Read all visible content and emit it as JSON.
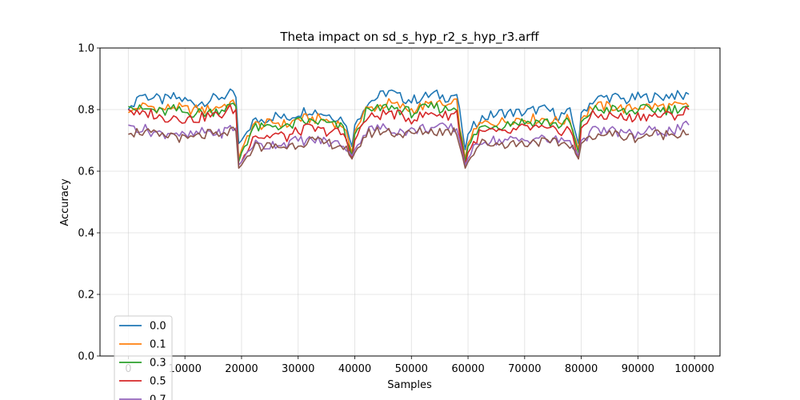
{
  "chart_data": {
    "type": "line",
    "title": "Theta impact on sd_s_hyp_r2_s_hyp_r3.arff",
    "xlabel": "Samples",
    "ylabel": "Accuracy",
    "xlim": [
      -5000,
      104500
    ],
    "ylim": [
      0.0,
      1.0
    ],
    "xticks": [
      0,
      10000,
      20000,
      30000,
      40000,
      50000,
      60000,
      70000,
      80000,
      90000,
      100000
    ],
    "xtick_labels": [
      "0",
      "10000",
      "20000",
      "30000",
      "40000",
      "50000",
      "60000",
      "70000",
      "80000",
      "90000",
      "100000"
    ],
    "yticks": [
      0.0,
      0.2,
      0.4,
      0.6,
      0.8,
      1.0
    ],
    "ytick_labels": [
      "0.0",
      "0.2",
      "0.4",
      "0.6",
      "0.8",
      "1.0"
    ],
    "grid": true,
    "legend_position": "lower-left",
    "x": {
      "start": 0,
      "step": 500,
      "count": 199
    },
    "series": [
      {
        "name": "0.0",
        "color": "#1f77b4",
        "segments": [
          {
            "x": [
              0,
              2000,
              4000,
              6000,
              8000,
              10000,
              12000,
              14000,
              16000,
              18000,
              19000,
              19500
            ],
            "y": [
              0.8,
              0.85,
              0.84,
              0.83,
              0.84,
              0.83,
              0.82,
              0.83,
              0.84,
              0.85,
              0.84,
              0.69
            ]
          },
          {
            "x": [
              20000,
              22000,
              24000,
              26000,
              28000,
              30000,
              32000,
              34000,
              36000,
              38000,
              39500
            ],
            "y": [
              0.7,
              0.76,
              0.77,
              0.78,
              0.77,
              0.79,
              0.8,
              0.79,
              0.78,
              0.77,
              0.68
            ]
          },
          {
            "x": [
              40000,
              42000,
              44000,
              46000,
              48000,
              50000,
              52000,
              54000,
              56000,
              58000,
              59500
            ],
            "y": [
              0.75,
              0.82,
              0.84,
              0.86,
              0.84,
              0.83,
              0.84,
              0.85,
              0.84,
              0.85,
              0.67
            ]
          },
          {
            "x": [
              60000,
              62000,
              64000,
              66000,
              68000,
              70000,
              72000,
              74000,
              76000,
              78000,
              79500
            ],
            "y": [
              0.72,
              0.77,
              0.78,
              0.79,
              0.79,
              0.79,
              0.8,
              0.8,
              0.78,
              0.79,
              0.69
            ]
          },
          {
            "x": [
              80000,
              82000,
              84000,
              86000,
              88000,
              90000,
              92000,
              94000,
              96000,
              98000,
              99000
            ],
            "y": [
              0.79,
              0.83,
              0.84,
              0.84,
              0.83,
              0.84,
              0.84,
              0.84,
              0.85,
              0.84,
              0.85
            ]
          }
        ]
      },
      {
        "name": "0.1",
        "color": "#ff7f0e",
        "segments": [
          {
            "x": [
              0,
              2000,
              4000,
              6000,
              8000,
              10000,
              12000,
              14000,
              16000,
              18000,
              19000,
              19500
            ],
            "y": [
              0.79,
              0.81,
              0.81,
              0.8,
              0.81,
              0.8,
              0.8,
              0.8,
              0.81,
              0.82,
              0.81,
              0.64
            ]
          },
          {
            "x": [
              20000,
              22000,
              24000,
              26000,
              28000,
              30000,
              32000,
              34000,
              36000,
              38000,
              39500
            ],
            "y": [
              0.67,
              0.75,
              0.75,
              0.76,
              0.75,
              0.77,
              0.77,
              0.77,
              0.76,
              0.75,
              0.66
            ]
          },
          {
            "x": [
              40000,
              42000,
              44000,
              46000,
              48000,
              50000,
              52000,
              54000,
              56000,
              58000,
              59500
            ],
            "y": [
              0.73,
              0.8,
              0.81,
              0.82,
              0.81,
              0.8,
              0.81,
              0.82,
              0.81,
              0.82,
              0.64
            ]
          },
          {
            "x": [
              60000,
              62000,
              64000,
              66000,
              68000,
              70000,
              72000,
              74000,
              76000,
              78000,
              79500
            ],
            "y": [
              0.69,
              0.75,
              0.76,
              0.76,
              0.77,
              0.77,
              0.77,
              0.77,
              0.76,
              0.77,
              0.67
            ]
          },
          {
            "x": [
              80000,
              82000,
              84000,
              86000,
              88000,
              90000,
              92000,
              94000,
              96000,
              98000,
              99000
            ],
            "y": [
              0.77,
              0.81,
              0.81,
              0.81,
              0.8,
              0.81,
              0.81,
              0.81,
              0.81,
              0.81,
              0.81
            ]
          }
        ]
      },
      {
        "name": "0.3",
        "color": "#2ca02c",
        "segments": [
          {
            "x": [
              0,
              2000,
              4000,
              6000,
              8000,
              10000,
              12000,
              14000,
              16000,
              18000,
              19000,
              19500
            ],
            "y": [
              0.81,
              0.8,
              0.8,
              0.79,
              0.8,
              0.79,
              0.79,
              0.79,
              0.8,
              0.81,
              0.81,
              0.63
            ]
          },
          {
            "x": [
              20000,
              22000,
              24000,
              26000,
              28000,
              30000,
              32000,
              34000,
              36000,
              38000,
              39500
            ],
            "y": [
              0.66,
              0.74,
              0.74,
              0.75,
              0.74,
              0.76,
              0.76,
              0.76,
              0.75,
              0.74,
              0.65
            ]
          },
          {
            "x": [
              40000,
              42000,
              44000,
              46000,
              48000,
              50000,
              52000,
              54000,
              56000,
              58000,
              59500
            ],
            "y": [
              0.72,
              0.79,
              0.8,
              0.81,
              0.8,
              0.79,
              0.8,
              0.81,
              0.8,
              0.81,
              0.63
            ]
          },
          {
            "x": [
              60000,
              62000,
              64000,
              66000,
              68000,
              70000,
              72000,
              74000,
              76000,
              78000,
              79500
            ],
            "y": [
              0.68,
              0.74,
              0.75,
              0.75,
              0.76,
              0.76,
              0.76,
              0.76,
              0.75,
              0.76,
              0.66
            ]
          },
          {
            "x": [
              80000,
              82000,
              84000,
              86000,
              88000,
              90000,
              92000,
              94000,
              96000,
              98000,
              99000
            ],
            "y": [
              0.76,
              0.8,
              0.8,
              0.8,
              0.79,
              0.8,
              0.8,
              0.8,
              0.8,
              0.81,
              0.81
            ]
          }
        ]
      },
      {
        "name": "0.5",
        "color": "#d62728",
        "segments": [
          {
            "x": [
              0,
              2000,
              4000,
              6000,
              8000,
              10000,
              12000,
              14000,
              16000,
              18000,
              19000,
              19500
            ],
            "y": [
              0.8,
              0.78,
              0.79,
              0.77,
              0.78,
              0.77,
              0.77,
              0.78,
              0.78,
              0.8,
              0.8,
              0.62
            ]
          },
          {
            "x": [
              20000,
              22000,
              24000,
              26000,
              28000,
              30000,
              32000,
              34000,
              36000,
              38000,
              39500
            ],
            "y": [
              0.63,
              0.72,
              0.71,
              0.72,
              0.71,
              0.73,
              0.74,
              0.73,
              0.73,
              0.72,
              0.64
            ]
          },
          {
            "x": [
              40000,
              42000,
              44000,
              46000,
              48000,
              50000,
              52000,
              54000,
              56000,
              58000,
              59500
            ],
            "y": [
              0.7,
              0.77,
              0.78,
              0.79,
              0.78,
              0.77,
              0.78,
              0.79,
              0.78,
              0.79,
              0.62
            ]
          },
          {
            "x": [
              60000,
              62000,
              64000,
              66000,
              68000,
              70000,
              72000,
              74000,
              76000,
              78000,
              79500
            ],
            "y": [
              0.66,
              0.72,
              0.73,
              0.72,
              0.73,
              0.74,
              0.74,
              0.73,
              0.73,
              0.74,
              0.64
            ]
          },
          {
            "x": [
              80000,
              82000,
              84000,
              86000,
              88000,
              90000,
              92000,
              94000,
              96000,
              98000,
              99000
            ],
            "y": [
              0.74,
              0.78,
              0.78,
              0.78,
              0.77,
              0.78,
              0.78,
              0.78,
              0.78,
              0.79,
              0.8
            ]
          }
        ]
      },
      {
        "name": "0.7",
        "color": "#9467bd",
        "segments": [
          {
            "x": [
              0,
              2000,
              4000,
              6000,
              8000,
              10000,
              12000,
              14000,
              16000,
              18000,
              19000,
              19500
            ],
            "y": [
              0.75,
              0.74,
              0.73,
              0.72,
              0.73,
              0.71,
              0.72,
              0.73,
              0.72,
              0.74,
              0.74,
              0.62
            ]
          },
          {
            "x": [
              20000,
              22000,
              24000,
              26000,
              28000,
              30000,
              32000,
              34000,
              36000,
              38000,
              39500
            ],
            "y": [
              0.63,
              0.69,
              0.68,
              0.69,
              0.69,
              0.7,
              0.7,
              0.7,
              0.69,
              0.69,
              0.65
            ]
          },
          {
            "x": [
              40000,
              42000,
              44000,
              46000,
              48000,
              50000,
              52000,
              54000,
              56000,
              58000,
              59500
            ],
            "y": [
              0.67,
              0.73,
              0.74,
              0.74,
              0.73,
              0.73,
              0.74,
              0.74,
              0.74,
              0.74,
              0.62
            ]
          },
          {
            "x": [
              60000,
              62000,
              64000,
              66000,
              68000,
              70000,
              72000,
              74000,
              76000,
              78000,
              79500
            ],
            "y": [
              0.64,
              0.7,
              0.7,
              0.7,
              0.7,
              0.7,
              0.71,
              0.7,
              0.7,
              0.7,
              0.65
            ]
          },
          {
            "x": [
              80000,
              82000,
              84000,
              86000,
              88000,
              90000,
              92000,
              94000,
              96000,
              98000,
              99000
            ],
            "y": [
              0.7,
              0.73,
              0.73,
              0.73,
              0.72,
              0.72,
              0.73,
              0.73,
              0.73,
              0.74,
              0.75
            ]
          }
        ]
      },
      {
        "name": "",
        "color": "#8c564b",
        "segments": [
          {
            "x": [
              0,
              2000,
              4000,
              6000,
              8000,
              10000,
              12000,
              14000,
              16000,
              18000,
              19000,
              19500
            ],
            "y": [
              0.72,
              0.73,
              0.72,
              0.71,
              0.72,
              0.7,
              0.71,
              0.72,
              0.71,
              0.73,
              0.73,
              0.61
            ]
          },
          {
            "x": [
              20000,
              22000,
              24000,
              26000,
              28000,
              30000,
              32000,
              34000,
              36000,
              38000,
              39500
            ],
            "y": [
              0.62,
              0.68,
              0.68,
              0.68,
              0.68,
              0.69,
              0.7,
              0.69,
              0.69,
              0.68,
              0.64
            ]
          },
          {
            "x": [
              40000,
              42000,
              44000,
              46000,
              48000,
              50000,
              52000,
              54000,
              56000,
              58000,
              59500
            ],
            "y": [
              0.66,
              0.72,
              0.73,
              0.73,
              0.72,
              0.72,
              0.73,
              0.73,
              0.73,
              0.73,
              0.61
            ]
          },
          {
            "x": [
              60000,
              62000,
              64000,
              66000,
              68000,
              70000,
              72000,
              74000,
              76000,
              78000,
              79500
            ],
            "y": [
              0.63,
              0.69,
              0.69,
              0.69,
              0.69,
              0.69,
              0.7,
              0.69,
              0.69,
              0.69,
              0.64
            ]
          },
          {
            "x": [
              80000,
              82000,
              84000,
              86000,
              88000,
              90000,
              92000,
              94000,
              96000,
              98000,
              99000
            ],
            "y": [
              0.69,
              0.72,
              0.72,
              0.72,
              0.71,
              0.71,
              0.72,
              0.72,
              0.72,
              0.73,
              0.72
            ]
          }
        ]
      }
    ]
  }
}
